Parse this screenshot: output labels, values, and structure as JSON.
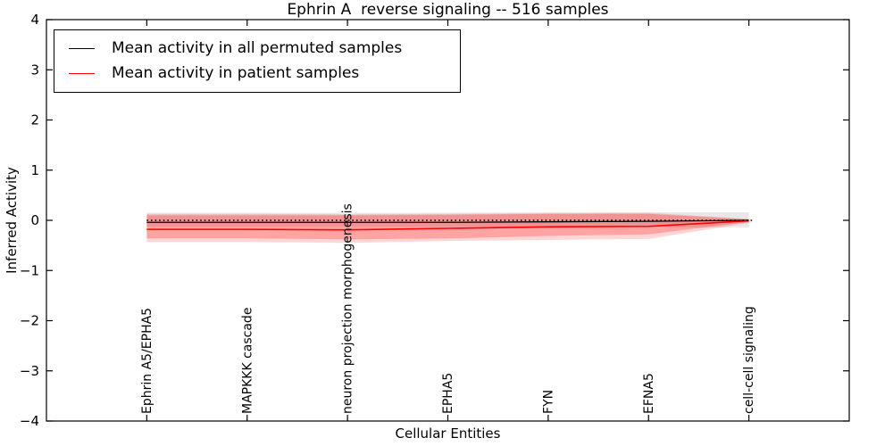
{
  "figure": {
    "title": "Ephrin A  reverse signaling -- 516 samples",
    "xlabel": "Cellular Entities",
    "ylabel": "Inferred Activity"
  },
  "legend": {
    "items": [
      {
        "label": "Mean activity in all permuted samples",
        "color": "#000000"
      },
      {
        "label": "Mean activity in patient samples",
        "color": "#ff0000"
      }
    ]
  },
  "chart_data": {
    "type": "line",
    "title": "Ephrin A  reverse signaling -- 516 samples",
    "xlabel": "Cellular Entities",
    "ylabel": "Inferred Activity",
    "ylim": [
      -4,
      4
    ],
    "yticks": [
      -4,
      -3,
      -2,
      -1,
      0,
      1,
      2,
      3,
      4
    ],
    "grid": false,
    "legend_position": "upper left",
    "categories": [
      "Ephrin A5/EPHA5",
      "MAPKKK cascade",
      "neuron projection morphogenesis",
      "EPHA5",
      "FYN",
      "EFNA5",
      "cell-cell signaling"
    ],
    "series": [
      {
        "name": "Mean activity in all permuted samples",
        "color": "#000000",
        "width": 1.3,
        "values": [
          -0.04,
          -0.04,
          -0.04,
          -0.04,
          -0.03,
          -0.02,
          0.0
        ]
      },
      {
        "name": "Mean activity in patient samples",
        "color": "#ff0000",
        "width": 1.6,
        "values": [
          -0.18,
          -0.18,
          -0.19,
          -0.16,
          -0.13,
          -0.12,
          -0.01
        ]
      }
    ],
    "bands": [
      {
        "name": "permuted-samples-range",
        "color": "rgba(0,0,0,0.09)",
        "top": [
          0.15,
          0.15,
          0.15,
          0.15,
          0.16,
          0.16,
          0.16
        ],
        "bottom": [
          -0.13,
          -0.13,
          -0.13,
          -0.13,
          -0.13,
          -0.14,
          -0.14
        ]
      },
      {
        "name": "patient-samples-range-outer",
        "color": "rgba(255,0,0,0.16)",
        "top": [
          0.13,
          0.13,
          0.12,
          0.13,
          0.14,
          0.15,
          0.03
        ],
        "bottom": [
          -0.43,
          -0.43,
          -0.45,
          -0.41,
          -0.39,
          -0.37,
          -0.05
        ]
      },
      {
        "name": "patient-samples-range-inner",
        "color": "rgba(255,0,0,0.24)",
        "top": [
          0.1,
          0.1,
          0.1,
          0.11,
          0.13,
          0.13,
          0.02
        ],
        "bottom": [
          -0.36,
          -0.36,
          -0.38,
          -0.36,
          -0.31,
          -0.28,
          -0.03
        ]
      }
    ],
    "zero_line": {
      "y": 0,
      "style": "dotted",
      "color": "#000000"
    }
  }
}
